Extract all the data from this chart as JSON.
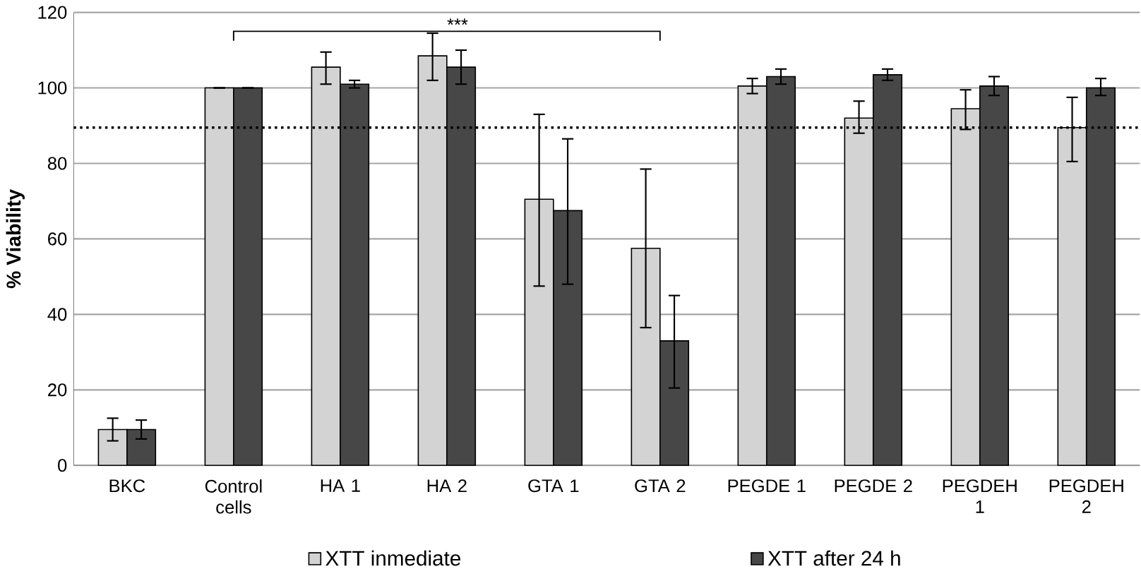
{
  "chart_data": {
    "type": "bar",
    "ylabel": "% Viability",
    "categories": [
      "BKC",
      "Control cells",
      "HA 1",
      "HA 2",
      "GTA 1",
      "GTA 2",
      "PEGDE 1",
      "PEGDE 2",
      "PEGDEH 1",
      "PEGDEH 2"
    ],
    "series": [
      {
        "name": "XTT inmediate",
        "color": "#d3d3d3",
        "values": [
          9.5,
          100,
          105.5,
          108.5,
          70.5,
          57.5,
          100.5,
          92,
          94.5,
          89.5
        ],
        "errors": [
          [
            6.5,
            12.5
          ],
          null,
          [
            101,
            109.5
          ],
          [
            102,
            114.5
          ],
          [
            47.5,
            93
          ],
          [
            36.5,
            78.5
          ],
          [
            98.5,
            102.5
          ],
          [
            88,
            96.5
          ],
          [
            89,
            99.5
          ],
          [
            80.5,
            97.5
          ]
        ]
      },
      {
        "name": "XTT after 24 h",
        "color": "#474747",
        "values": [
          9.5,
          100,
          101,
          105.5,
          67.5,
          33,
          103,
          103.5,
          100.5,
          100
        ],
        "errors": [
          [
            7,
            12
          ],
          null,
          [
            100,
            102
          ],
          [
            101,
            110
          ],
          [
            48,
            86.5
          ],
          [
            20.5,
            45
          ],
          [
            101,
            105
          ],
          [
            102,
            105
          ],
          [
            98,
            103
          ],
          [
            98,
            102.5
          ]
        ]
      }
    ],
    "ylim": [
      0,
      120
    ],
    "yticks": [
      0,
      20,
      40,
      60,
      80,
      100,
      120
    ],
    "grid": "y",
    "legend": "bottom",
    "ref_lines": [
      {
        "axis": "y",
        "value": 89.5,
        "line_style": "dotted"
      }
    ],
    "annotations": [
      "***"
    ]
  }
}
